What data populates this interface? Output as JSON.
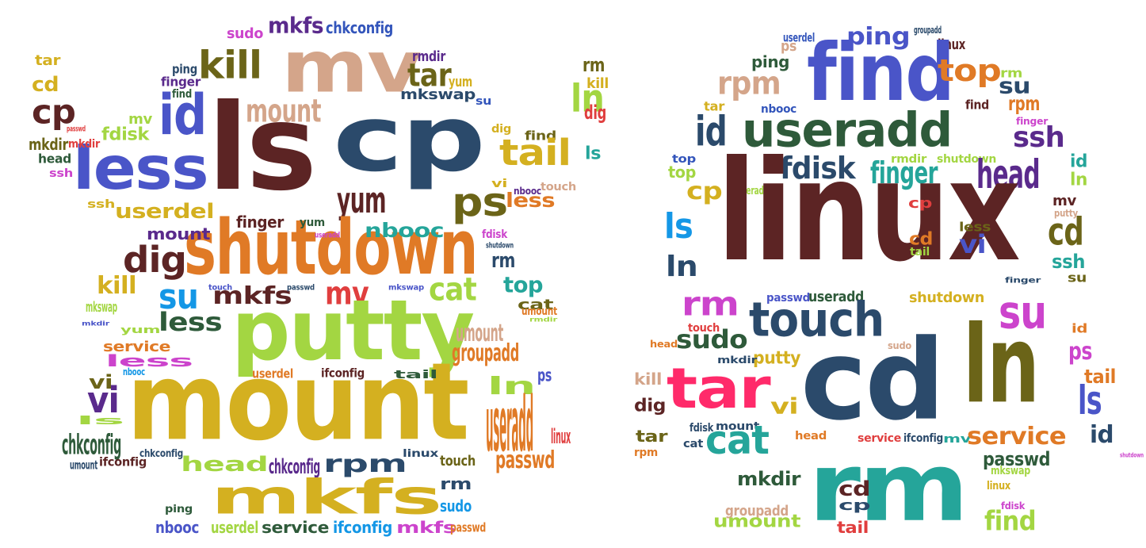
{
  "colors": [
    "#5c2424",
    "#2b4a6b",
    "#1497e6",
    "#d4a58a",
    "#e07a26",
    "#4a55c8",
    "#6b6418",
    "#5a2a8c",
    "#2e5a3a",
    "#25a59a",
    "#a3d642",
    "#e03e3e",
    "#ff2a6a",
    "#d4b020",
    "#cc44cc",
    "#3355bb"
  ],
  "left_cloud": [
    {
      "text": "mv",
      "color": "#d4a58a"
    },
    {
      "text": "ls",
      "color": "#5c2424"
    },
    {
      "text": "cp",
      "color": "#2b4a6b"
    },
    {
      "text": "less",
      "color": "#4a55c8"
    },
    {
      "text": "id",
      "color": "#4a55c8"
    },
    {
      "text": "kill",
      "color": "#6b6418"
    },
    {
      "text": "mkfs",
      "color": "#5a2a8c"
    },
    {
      "text": "sudo",
      "color": "#cc44cc"
    },
    {
      "text": "chkconfig",
      "color": "#3355bb"
    },
    {
      "text": "tar",
      "color": "#d4b020"
    },
    {
      "text": "cd",
      "color": "#d4b020"
    },
    {
      "text": "cp",
      "color": "#5c2424"
    },
    {
      "text": "passwd",
      "color": "#e03e3e"
    },
    {
      "text": "mkdir",
      "color": "#e03e3e"
    },
    {
      "text": "mv",
      "color": "#a3d642"
    },
    {
      "text": "mkdir",
      "color": "#6b6418"
    },
    {
      "text": "fdisk",
      "color": "#a3d642"
    },
    {
      "text": "head",
      "color": "#2e5a3a"
    },
    {
      "text": "ssh",
      "color": "#cc44cc"
    },
    {
      "text": "ping",
      "color": "#2b4a6b"
    },
    {
      "text": "finger",
      "color": "#5a2a8c"
    },
    {
      "text": "find",
      "color": "#2e5a3a"
    },
    {
      "text": "mount",
      "color": "#d4a58a"
    },
    {
      "text": "rmdir",
      "color": "#5a2a8c"
    },
    {
      "text": "tar",
      "color": "#6b6418"
    },
    {
      "text": "yum",
      "color": "#d4b020"
    },
    {
      "text": "mkswap",
      "color": "#2b4a6b"
    },
    {
      "text": "su",
      "color": "#3355bb"
    },
    {
      "text": "rm",
      "color": "#6b6418"
    },
    {
      "text": "kill",
      "color": "#d4b020"
    },
    {
      "text": "ln",
      "color": "#a3d642"
    },
    {
      "text": "dig",
      "color": "#e03e3e"
    },
    {
      "text": "dig",
      "color": "#d4b020"
    },
    {
      "text": "find",
      "color": "#6b6418"
    },
    {
      "text": "tail",
      "color": "#d4b020"
    },
    {
      "text": "ls",
      "color": "#25a59a"
    },
    {
      "text": "vi",
      "color": "#d4b020"
    },
    {
      "text": "nbooc",
      "color": "#5a2a8c"
    },
    {
      "text": "touch",
      "color": "#d4a58a"
    },
    {
      "text": "less",
      "color": "#e07a26"
    },
    {
      "text": "ps",
      "color": "#6b6418"
    },
    {
      "text": "yum",
      "color": "#5c2424"
    },
    {
      "text": "ssh",
      "color": "#d4b020"
    },
    {
      "text": "userdel",
      "color": "#d4b020"
    },
    {
      "text": "shutdown",
      "color": "#e07a26"
    },
    {
      "text": "finger",
      "color": "#5c2424"
    },
    {
      "text": "yum",
      "color": "#2e5a3a"
    },
    {
      "text": "useradd",
      "color": "#cc44cc"
    },
    {
      "text": "nbooc",
      "color": "#25a59a"
    },
    {
      "text": "fdisk",
      "color": "#cc44cc"
    },
    {
      "text": "shutdown",
      "color": "#2b4a6b"
    },
    {
      "text": "mount",
      "color": "#5a2a8c"
    },
    {
      "text": "dig",
      "color": "#5c2424"
    },
    {
      "text": "rm",
      "color": "#2b4a6b"
    },
    {
      "text": "kill",
      "color": "#d4b020"
    },
    {
      "text": "su",
      "color": "#1497e6"
    },
    {
      "text": "mkfs",
      "color": "#5c2424"
    },
    {
      "text": "touch",
      "color": "#4a55c8"
    },
    {
      "text": "passwd",
      "color": "#2b4a6b"
    },
    {
      "text": "mv",
      "color": "#e03e3e"
    },
    {
      "text": "mkswap",
      "color": "#4a55c8"
    },
    {
      "text": "cat",
      "color": "#a3d642"
    },
    {
      "text": "top",
      "color": "#25a59a"
    },
    {
      "text": "cat",
      "color": "#6b6418"
    },
    {
      "text": "mkswap",
      "color": "#a3d642"
    },
    {
      "text": "mkdir",
      "color": "#4a55c8"
    },
    {
      "text": "putty",
      "color": "#a3d642"
    },
    {
      "text": "less",
      "color": "#2e5a3a"
    },
    {
      "text": "umount",
      "color": "#e07a26"
    },
    {
      "text": "service",
      "color": "#e07a26"
    },
    {
      "text": "yum",
      "color": "#a3d642"
    },
    {
      "text": "umount",
      "color": "#d4a58a"
    },
    {
      "text": "rmdir",
      "color": "#a3d642"
    },
    {
      "text": "groupadd",
      "color": "#e07a26"
    },
    {
      "text": "less",
      "color": "#cc44cc"
    },
    {
      "text": "nbooc",
      "color": "#1497e6"
    },
    {
      "text": "mount",
      "color": "#d4b020"
    },
    {
      "text": "userdel",
      "color": "#e07a26"
    },
    {
      "text": "ifconfig",
      "color": "#5c2424"
    },
    {
      "text": "tail",
      "color": "#2e5a3a"
    },
    {
      "text": "ln",
      "color": "#a3d642"
    },
    {
      "text": "ps",
      "color": "#4a55c8"
    },
    {
      "text": "vi",
      "color": "#6b6418"
    },
    {
      "text": "vi",
      "color": "#5a2a8c"
    },
    {
      "text": "useradd",
      "color": "#e07a26"
    },
    {
      "text": "ls",
      "color": "#a3d642"
    },
    {
      "text": "linux",
      "color": "#e03e3e"
    },
    {
      "text": "chkconfig",
      "color": "#2e5a3a"
    },
    {
      "text": "chkconfig",
      "color": "#2b4a6b"
    },
    {
      "text": "linux",
      "color": "#2b4a6b"
    },
    {
      "text": "umount",
      "color": "#2b4a6b"
    },
    {
      "text": "ifconfig",
      "color": "#5c2424"
    },
    {
      "text": "head",
      "color": "#a3d642"
    },
    {
      "text": "chkconfig",
      "color": "#5a2a8c"
    },
    {
      "text": "rpm",
      "color": "#2b4a6b"
    },
    {
      "text": "touch",
      "color": "#6b6418"
    },
    {
      "text": "passwd",
      "color": "#e07a26"
    },
    {
      "text": "mkfs",
      "color": "#d4b020"
    },
    {
      "text": "ping",
      "color": "#2e5a3a"
    },
    {
      "text": "sudo",
      "color": "#1497e6"
    },
    {
      "text": "nbooc",
      "color": "#4a55c8"
    },
    {
      "text": "userdel",
      "color": "#a3d642"
    },
    {
      "text": "service",
      "color": "#2e5a3a"
    },
    {
      "text": "ifconfig",
      "color": "#1497e6"
    },
    {
      "text": "mkfs",
      "color": "#cc44cc"
    },
    {
      "text": "passwd",
      "color": "#e07a26"
    },
    {
      "text": "rm",
      "color": "#2b4a6b"
    }
  ],
  "right_cloud": [
    {
      "text": "ps",
      "color": "#d4a58a"
    },
    {
      "text": "userdel",
      "color": "#3355bb"
    },
    {
      "text": "ping",
      "color": "#4a55c8"
    },
    {
      "text": "groupadd",
      "color": "#2b4a6b"
    },
    {
      "text": "linux",
      "color": "#5c2424"
    },
    {
      "text": "ping",
      "color": "#2e5a3a"
    },
    {
      "text": "find",
      "color": "#4a55c8"
    },
    {
      "text": "top",
      "color": "#e07a26"
    },
    {
      "text": "rm",
      "color": "#a3d642"
    },
    {
      "text": "rpm",
      "color": "#d4a58a"
    },
    {
      "text": "su",
      "color": "#2b4a6b"
    },
    {
      "text": "tar",
      "color": "#d4b020"
    },
    {
      "text": "nbooc",
      "color": "#3355bb"
    },
    {
      "text": "find",
      "color": "#5c2424"
    },
    {
      "text": "rpm",
      "color": "#e07a26"
    },
    {
      "text": "id",
      "color": "#2b4a6b"
    },
    {
      "text": "useradd",
      "color": "#2e5a3a"
    },
    {
      "text": "finger",
      "color": "#cc44cc"
    },
    {
      "text": "ssh",
      "color": "#5a2a8c"
    },
    {
      "text": "top",
      "color": "#3355bb"
    },
    {
      "text": "top",
      "color": "#a3d642"
    },
    {
      "text": "fdisk",
      "color": "#2b4a6b"
    },
    {
      "text": "finger",
      "color": "#25a59a"
    },
    {
      "text": "rmdir",
      "color": "#a3d642"
    },
    {
      "text": "shutdown",
      "color": "#a3d642"
    },
    {
      "text": "head",
      "color": "#5a2a8c"
    },
    {
      "text": "id",
      "color": "#25a59a"
    },
    {
      "text": "ln",
      "color": "#a3d642"
    },
    {
      "text": "cp",
      "color": "#d4b020"
    },
    {
      "text": "useradd",
      "color": "#a3d642"
    },
    {
      "text": "linux",
      "color": "#5c2424"
    },
    {
      "text": "mv",
      "color": "#5c2424"
    },
    {
      "text": "putty",
      "color": "#d4a58a"
    },
    {
      "text": "ls",
      "color": "#1497e6"
    },
    {
      "text": "cp",
      "color": "#e03e3e"
    },
    {
      "text": "cd",
      "color": "#e07a26"
    },
    {
      "text": "tail",
      "color": "#a3d642"
    },
    {
      "text": "less",
      "color": "#6b6418"
    },
    {
      "text": "vi",
      "color": "#4a55c8"
    },
    {
      "text": "cd",
      "color": "#6b6418"
    },
    {
      "text": "ln",
      "color": "#2b4a6b"
    },
    {
      "text": "ssh",
      "color": "#25a59a"
    },
    {
      "text": "su",
      "color": "#6b6418"
    },
    {
      "text": "finger",
      "color": "#2b4a6b"
    },
    {
      "text": "rm",
      "color": "#cc44cc"
    },
    {
      "text": "passwd",
      "color": "#4a55c8"
    },
    {
      "text": "useradd",
      "color": "#2e5a3a"
    },
    {
      "text": "shutdown",
      "color": "#d4b020"
    },
    {
      "text": "touch",
      "color": "#2b4a6b"
    },
    {
      "text": "su",
      "color": "#cc44cc"
    },
    {
      "text": "ln",
      "color": "#6b6418"
    },
    {
      "text": "id",
      "color": "#e07a26"
    },
    {
      "text": "touch",
      "color": "#e03e3e"
    },
    {
      "text": "head",
      "color": "#e07a26"
    },
    {
      "text": "sudo",
      "color": "#2e5a3a"
    },
    {
      "text": "sudo",
      "color": "#d4a58a"
    },
    {
      "text": "cd",
      "color": "#2b4a6b"
    },
    {
      "text": "ps",
      "color": "#cc44cc"
    },
    {
      "text": "kill",
      "color": "#d4a58a"
    },
    {
      "text": "putty",
      "color": "#d4b020"
    },
    {
      "text": "mkdir",
      "color": "#2b4a6b"
    },
    {
      "text": "tar",
      "color": "#ff2a6a"
    },
    {
      "text": "tail",
      "color": "#e07a26"
    },
    {
      "text": "dig",
      "color": "#5c2424"
    },
    {
      "text": "vi",
      "color": "#d4b020"
    },
    {
      "text": "ls",
      "color": "#4a55c8"
    },
    {
      "text": "tar",
      "color": "#6b6418"
    },
    {
      "text": "fdisk",
      "color": "#2b4a6b"
    },
    {
      "text": "mount",
      "color": "#2b4a6b"
    },
    {
      "text": "head",
      "color": "#e07a26"
    },
    {
      "text": "service",
      "color": "#e03e3e"
    },
    {
      "text": "ifconfig",
      "color": "#2b4a6b"
    },
    {
      "text": "mv",
      "color": "#25a59a"
    },
    {
      "text": "service",
      "color": "#e07a26"
    },
    {
      "text": "id",
      "color": "#2b4a6b"
    },
    {
      "text": "rpm",
      "color": "#e07a26"
    },
    {
      "text": "cat",
      "color": "#2b4a6b"
    },
    {
      "text": "cat",
      "color": "#25a59a"
    },
    {
      "text": "passwd",
      "color": "#2e5a3a"
    },
    {
      "text": "shutdown",
      "color": "#cc44cc"
    },
    {
      "text": "mkswap",
      "color": "#a3d642"
    },
    {
      "text": "rm",
      "color": "#25a59a"
    },
    {
      "text": "mkdir",
      "color": "#2e5a3a"
    },
    {
      "text": "linux",
      "color": "#d4b020"
    },
    {
      "text": "cd",
      "color": "#5c2424"
    },
    {
      "text": "cp",
      "color": "#2b4a6b"
    },
    {
      "text": "groupadd",
      "color": "#d4a58a"
    },
    {
      "text": "fdisk",
      "color": "#cc44cc"
    },
    {
      "text": "umount",
      "color": "#a3d642"
    },
    {
      "text": "tail",
      "color": "#e03e3e"
    },
    {
      "text": "find",
      "color": "#a3d642"
    }
  ]
}
